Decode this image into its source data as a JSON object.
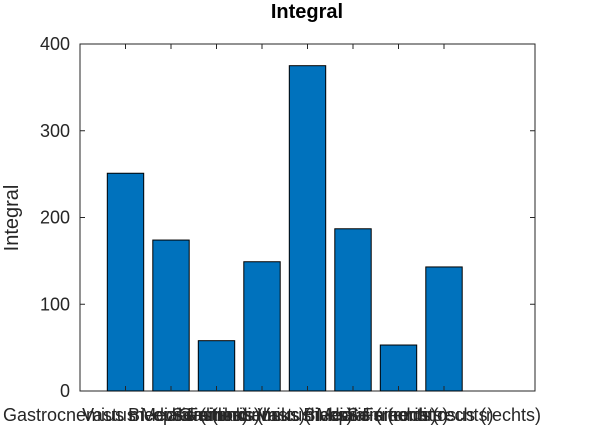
{
  "chart_data": {
    "type": "bar",
    "title": "Integral",
    "xlabel": "",
    "ylabel": "Integral",
    "ylim": [
      0,
      400
    ],
    "yticks": [
      0,
      100,
      200,
      300,
      400
    ],
    "xlim": [
      0,
      10
    ],
    "bar_color": "#0072BD",
    "categories": [
      "Gastrocnemius medialis (links)",
      "Vastus Medialis (links)",
      "Biceps Femoris (links)",
      "Semitendinosus (links)",
      "Gastrocnemius medialis (rechts)",
      "Vastus Medialis (rechts)",
      "Biceps Femoris (rechts)",
      "Semitendinosus (rechts)"
    ],
    "values": [
      251,
      174,
      58,
      149,
      375,
      187,
      53,
      143
    ]
  }
}
